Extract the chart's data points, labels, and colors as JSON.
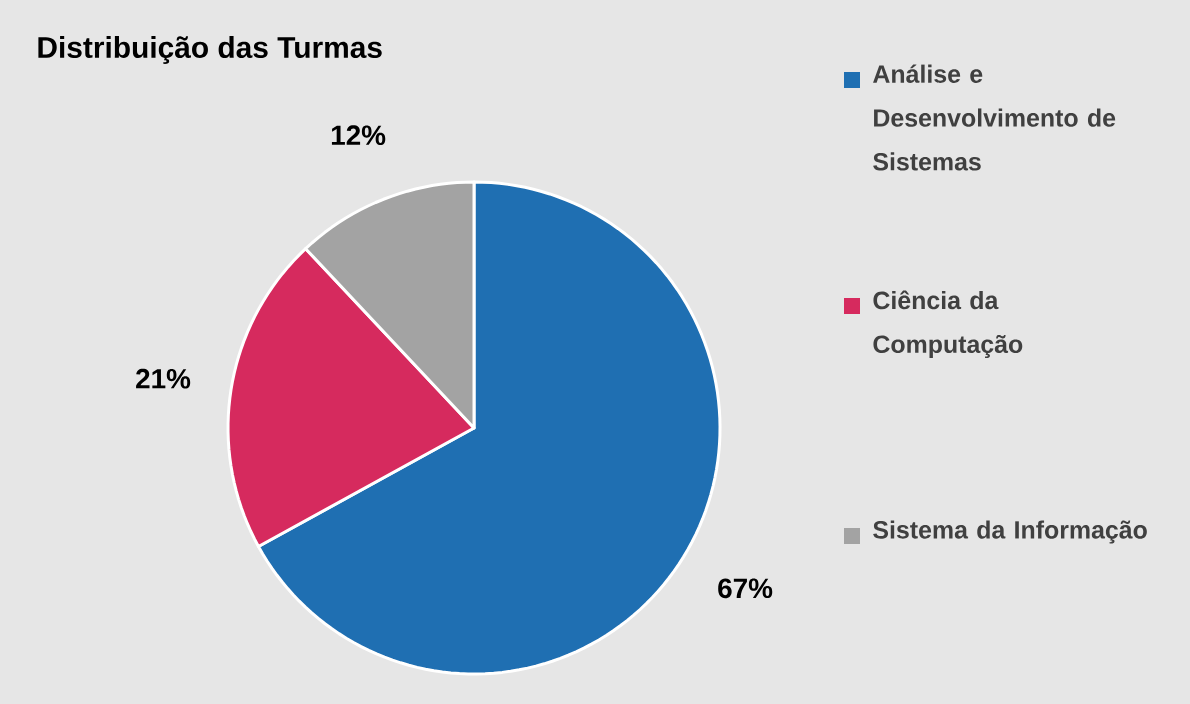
{
  "chart_data": {
    "type": "pie",
    "title": "Distribuição das Turmas",
    "categories": [
      "Análise e Desenvolvimento de Sistemas",
      "Ciência da Computação",
      "Sistema da Informação"
    ],
    "values": [
      67,
      21,
      12
    ],
    "value_labels": [
      "67%",
      "21%",
      "12%"
    ],
    "colors": [
      "#1f6fb2",
      "#d62a5e",
      "#a3a3a3"
    ],
    "legend": "right"
  }
}
